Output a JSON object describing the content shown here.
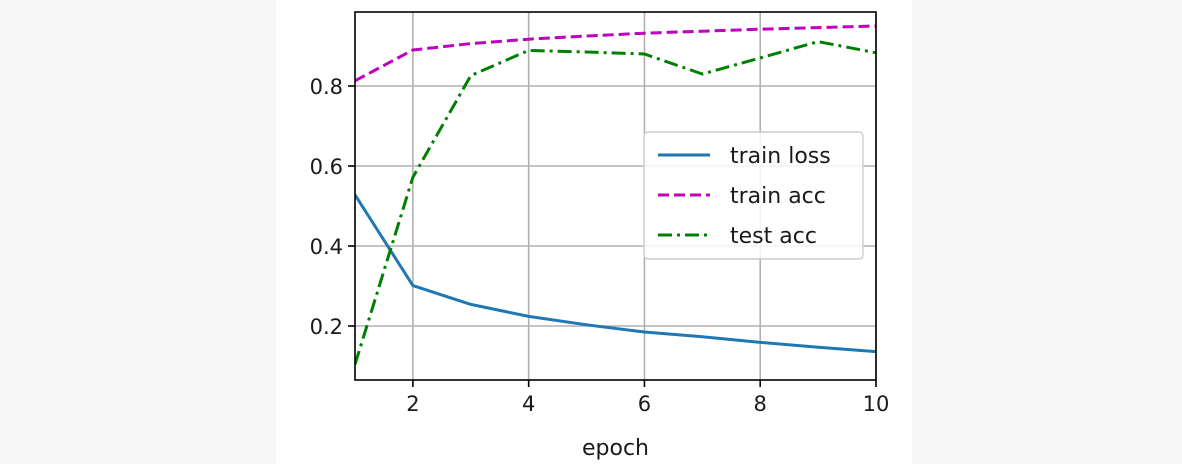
{
  "chart_data": {
    "type": "line",
    "xlabel": "epoch",
    "ylabel": "",
    "xlim": [
      1,
      10
    ],
    "ylim": [
      0.065,
      0.985
    ],
    "x_ticks": [
      2,
      4,
      6,
      8,
      10
    ],
    "y_ticks": [
      0.2,
      0.4,
      0.6,
      0.8
    ],
    "y_tick_labels": [
      "0.2",
      "0.4",
      "0.6",
      "0.8"
    ],
    "grid": true,
    "legend_position": "center-right",
    "x": [
      1,
      2,
      3,
      4,
      5,
      6,
      7,
      8,
      9,
      10
    ],
    "series": [
      {
        "name": "train loss",
        "color": "#1f77b4",
        "style": "solid",
        "values": [
          0.528,
          0.301,
          0.254,
          0.224,
          0.203,
          0.185,
          0.173,
          0.159,
          0.147,
          0.136
        ]
      },
      {
        "name": "train acc",
        "color": "#bf00bf",
        "style": "dashed",
        "values": [
          0.813,
          0.89,
          0.906,
          0.917,
          0.925,
          0.932,
          0.937,
          0.942,
          0.946,
          0.95
        ]
      },
      {
        "name": "test acc",
        "color": "#008000",
        "style": "dashdot",
        "values": [
          0.104,
          0.572,
          0.826,
          0.889,
          0.885,
          0.88,
          0.83,
          0.87,
          0.911,
          0.883
        ]
      }
    ]
  }
}
